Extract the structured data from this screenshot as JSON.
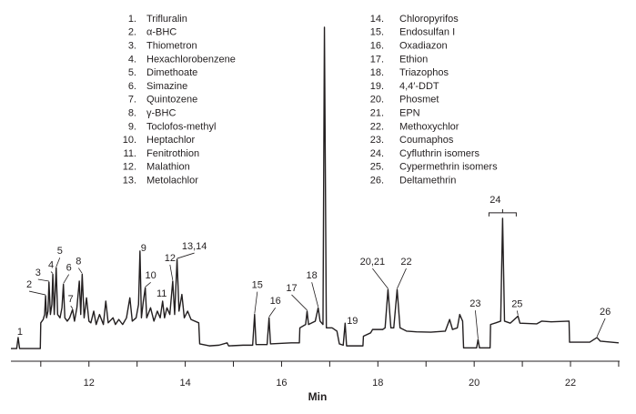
{
  "chart_data": {
    "type": "line",
    "x_label": "Min",
    "color": "#231f20",
    "xlim": [
      10.38,
      23.02
    ],
    "xticks": [
      12,
      14,
      16,
      18,
      20,
      22
    ],
    "xminor_ticks": [
      11,
      13,
      15,
      17,
      19,
      21,
      23
    ],
    "ylim": [
      0,
      100
    ],
    "x": [
      10.38,
      10.5,
      10.53,
      10.56,
      10.99,
      11.0,
      11.05,
      11.08,
      11.1,
      11.12,
      11.15,
      11.17,
      11.2,
      11.23,
      11.25,
      11.28,
      11.32,
      11.35,
      11.4,
      11.44,
      11.47,
      11.5,
      11.55,
      11.6,
      11.66,
      11.7,
      11.75,
      11.8,
      11.83,
      11.86,
      11.9,
      11.95,
      12.0,
      12.04,
      12.1,
      12.15,
      12.22,
      12.3,
      12.35,
      12.4,
      12.5,
      12.55,
      12.62,
      12.7,
      12.78,
      12.85,
      12.9,
      12.98,
      13.03,
      13.06,
      13.09,
      13.13,
      13.17,
      13.2,
      13.28,
      13.35,
      13.42,
      13.48,
      13.53,
      13.57,
      13.62,
      13.68,
      13.74,
      13.78,
      13.83,
      13.87,
      13.93,
      13.98,
      14.05,
      14.12,
      14.28,
      14.3,
      14.5,
      14.7,
      14.87,
      14.9,
      15.2,
      15.4,
      15.44,
      15.47,
      15.7,
      15.74,
      15.77,
      16.2,
      16.37,
      16.38,
      16.5,
      16.53,
      16.56,
      16.7,
      16.76,
      16.8,
      16.86,
      16.89,
      16.93,
      17.05,
      17.15,
      17.2,
      17.28,
      17.32,
      17.35,
      17.69,
      17.7,
      17.85,
      17.89,
      18.1,
      18.15,
      18.21,
      18.27,
      18.33,
      18.4,
      18.46,
      18.6,
      18.8,
      19.1,
      19.4,
      19.49,
      19.55,
      19.65,
      19.7,
      19.76,
      19.78,
      20.05,
      20.08,
      20.11,
      20.33,
      20.34,
      20.45,
      20.55,
      20.59,
      20.63,
      20.75,
      20.91,
      20.95,
      21.3,
      21.4,
      21.6,
      21.97,
      21.98,
      22.4,
      22.55,
      22.62,
      23.0
    ],
    "values": [
      3.8,
      3.8,
      7.1,
      3.8,
      3.8,
      11.5,
      12.5,
      14,
      19.6,
      13,
      15,
      23.7,
      14,
      17,
      26,
      14,
      28,
      14,
      13,
      16,
      23,
      13,
      12,
      13,
      15.5,
      12,
      16,
      24,
      14,
      26,
      13,
      19,
      12,
      11.5,
      15,
      11,
      14,
      11,
      18,
      11.5,
      13,
      11,
      12.5,
      11,
      13,
      19,
      12,
      13,
      17,
      33,
      13,
      18,
      22,
      13,
      16,
      12,
      15,
      13,
      18,
      13,
      16,
      14,
      24,
      14,
      30.5,
      15,
      20,
      13,
      15,
      12.5,
      11.5,
      5.2,
      4.6,
      4.8,
      5.5,
      4.6,
      4.8,
      4.8,
      14,
      5,
      5,
      13,
      5.2,
      5.5,
      5.5,
      10,
      11,
      15,
      11,
      12,
      16,
      12,
      11,
      100,
      10,
      10,
      9,
      5.2,
      4.8,
      11.4,
      4.6,
      4.6,
      7.5,
      8.5,
      9.5,
      9.5,
      10,
      21.5,
      10,
      10,
      21.5,
      10,
      9,
      8.8,
      8.7,
      9,
      12.5,
      9.5,
      10,
      14,
      12,
      4,
      4,
      6.5,
      4,
      4,
      11,
      11.5,
      12,
      42.8,
      12,
      11.4,
      13.5,
      11.4,
      11.2,
      12,
      11.8,
      12,
      5.7,
      5.7,
      7.1,
      6,
      5.5
    ],
    "annotations": [
      {
        "text": "1",
        "x": 10.53,
        "y": 7.1
      },
      {
        "text": "2",
        "x": 11.1,
        "y": 19.6
      },
      {
        "text": "3",
        "x": 11.17,
        "y": 23.7
      },
      {
        "text": "4",
        "x": 11.25,
        "y": 26
      },
      {
        "text": "5",
        "x": 11.32,
        "y": 28
      },
      {
        "text": "6",
        "x": 11.47,
        "y": 23
      },
      {
        "text": "7",
        "x": 11.66,
        "y": 15.5
      },
      {
        "text": "8",
        "x": 11.86,
        "y": 26
      },
      {
        "text": "9",
        "x": 13.06,
        "y": 33
      },
      {
        "text": "10",
        "x": 13.17,
        "y": 22
      },
      {
        "text": "11",
        "x": 13.53,
        "y": 18
      },
      {
        "text": "12",
        "x": 13.74,
        "y": 24
      },
      {
        "text": "13,14",
        "x": 13.83,
        "y": 30.5
      },
      {
        "text": "15",
        "x": 15.44,
        "y": 14
      },
      {
        "text": "16",
        "x": 15.74,
        "y": 13
      },
      {
        "text": "17",
        "x": 16.53,
        "y": 15
      },
      {
        "text": "18",
        "x": 16.76,
        "y": 16
      },
      {
        "text": "19",
        "x": 17.32,
        "y": 11.4
      },
      {
        "text": "20,21",
        "x": 18.21,
        "y": 21.5
      },
      {
        "text": "22",
        "x": 18.4,
        "y": 21.5
      },
      {
        "text": "23",
        "x": 20.08,
        "y": 6.5
      },
      {
        "text": "24",
        "x": 20.59,
        "y": 42.8
      },
      {
        "text": "25",
        "x": 20.91,
        "y": 13.5
      },
      {
        "text": "26",
        "x": 22.55,
        "y": 7.1
      }
    ],
    "compounds": [
      {
        "number": "1.",
        "name": "Trifluralin"
      },
      {
        "number": "2.",
        "name": "α-BHC"
      },
      {
        "number": "3.",
        "name": "Thiometron"
      },
      {
        "number": "4.",
        "name": "Hexachlorobenzene"
      },
      {
        "number": "5.",
        "name": "Dimethoate"
      },
      {
        "number": "6.",
        "name": "Simazine"
      },
      {
        "number": "7.",
        "name": "Quintozene"
      },
      {
        "number": "8.",
        "name": "γ-BHC"
      },
      {
        "number": "9.",
        "name": "Toclofos-methyl"
      },
      {
        "number": "10.",
        "name": "Heptachlor"
      },
      {
        "number": "11.",
        "name": "Fenitrothion"
      },
      {
        "number": "12.",
        "name": "Malathion"
      },
      {
        "number": "13.",
        "name": "Metolachlor"
      },
      {
        "number": "14.",
        "name": "Chloropyrifos"
      },
      {
        "number": "15.",
        "name": "Endosulfan I"
      },
      {
        "number": "16.",
        "name": "Oxadiazon"
      },
      {
        "number": "17.",
        "name": "Ethion"
      },
      {
        "number": "18.",
        "name": "Triazophos"
      },
      {
        "number": "19.",
        "name": "4,4′-DDT"
      },
      {
        "number": "20.",
        "name": "Phosmet"
      },
      {
        "number": "21.",
        "name": "EPN"
      },
      {
        "number": "22.",
        "name": "Methoxychlor"
      },
      {
        "number": "23.",
        "name": "Coumaphos"
      },
      {
        "number": "24.",
        "name": "Cyfluthrin isomers"
      },
      {
        "number": "25.",
        "name": "Cypermethrin isomers"
      },
      {
        "number": "26.",
        "name": "Deltamethrin"
      }
    ]
  }
}
